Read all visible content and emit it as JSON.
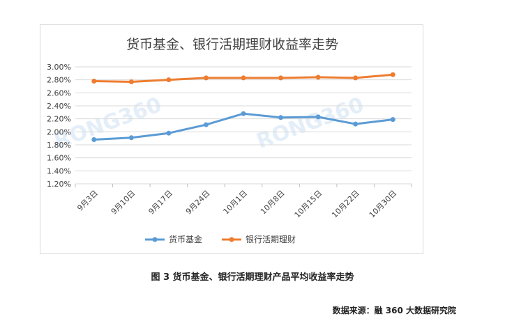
{
  "chart_data": {
    "type": "line",
    "title": "货币基金、银行活期理财收益率走势",
    "categories": [
      "9月3日",
      "9月10日",
      "9月17日",
      "9月24日",
      "10月1日",
      "10月8日",
      "10月15日",
      "10月22日",
      "10月30日"
    ],
    "series": [
      {
        "name": "货币基金",
        "color": "#5b9bd5",
        "values": [
          1.88,
          1.91,
          1.98,
          2.11,
          2.28,
          2.22,
          2.23,
          2.12,
          2.19
        ]
      },
      {
        "name": "银行活期理财",
        "color": "#ed7d31",
        "values": [
          2.78,
          2.77,
          2.8,
          2.83,
          2.83,
          2.83,
          2.84,
          2.83,
          2.88
        ]
      }
    ],
    "ylim": [
      1.2,
      3.0
    ],
    "yticks": [
      "1.20%",
      "1.40%",
      "1.60%",
      "1.80%",
      "2.00%",
      "2.20%",
      "2.40%",
      "2.60%",
      "2.80%",
      "3.00%"
    ],
    "grid": true,
    "legend": "bottom",
    "watermark": "RONG360"
  },
  "caption": "图 3  货币基金、银行活期理财产品平均收益率走势",
  "source": "数据来源：融 360 大数据研究院"
}
